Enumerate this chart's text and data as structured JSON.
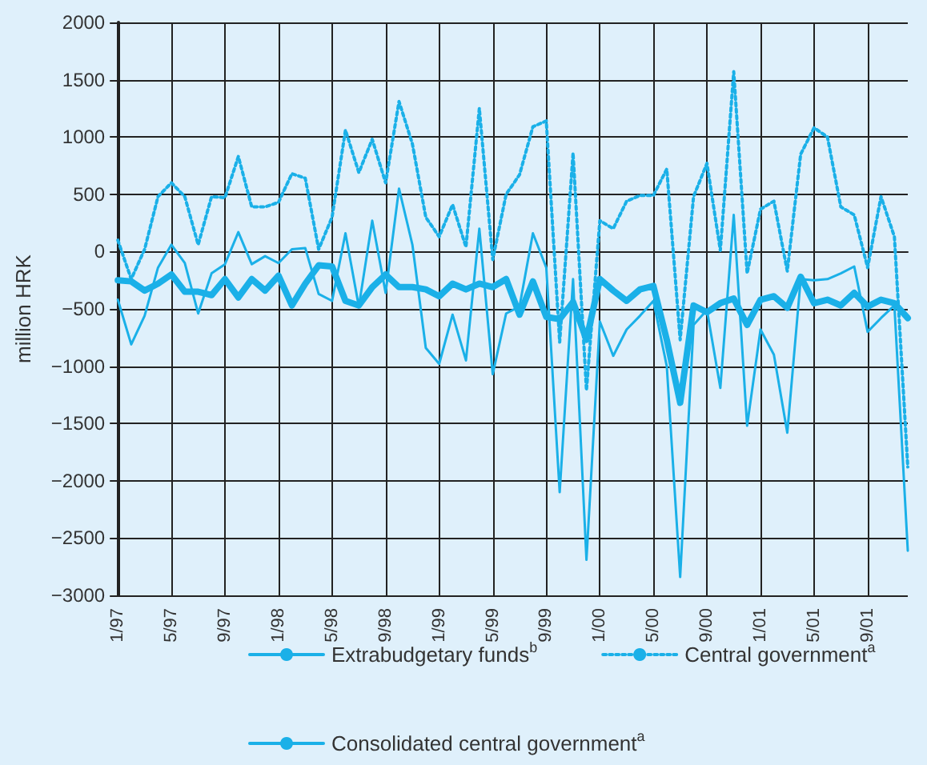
{
  "chart_data": {
    "type": "line",
    "ylabel": "million HRK",
    "categories": [
      "1/97",
      null,
      null,
      null,
      "5/97",
      null,
      null,
      null,
      "9/97",
      null,
      null,
      null,
      "1/98",
      null,
      null,
      null,
      "5/98",
      null,
      null,
      null,
      "9/98",
      null,
      null,
      null,
      "1/99",
      null,
      null,
      null,
      "5/99",
      null,
      null,
      null,
      "9/99",
      null,
      null,
      null,
      "1/00",
      null,
      null,
      null,
      "5/00",
      null,
      null,
      null,
      "9/00",
      null,
      null,
      null,
      "1/01",
      null,
      null,
      null,
      "5/01",
      null,
      null,
      null,
      "9/01",
      null,
      null,
      null
    ],
    "series": [
      {
        "name": "Extrabudgetary funds$^{b}$",
        "color": "#1ab0e8",
        "line_style": "solid",
        "values": [
          -250,
          -260,
          -340,
          -280,
          -200,
          -350,
          -350,
          -380,
          -240,
          -400,
          -240,
          -340,
          -210,
          -470,
          -280,
          -120,
          -130,
          -430,
          -470,
          -310,
          -200,
          -310,
          -310,
          -330,
          -390,
          -280,
          -330,
          -280,
          -310,
          -240,
          -550,
          -260,
          -570,
          -590,
          -440,
          -770,
          -240,
          -340,
          -430,
          -330,
          -300,
          -770,
          -1320,
          -470,
          -530,
          -450,
          -410,
          -640,
          -420,
          -390,
          -490,
          -220,
          -450,
          -420,
          -470,
          -360,
          -480,
          -420,
          -450,
          -580
        ]
      },
      {
        "name": "Central government$^{a}$",
        "color": "#1ab0e8",
        "line_style": "dotted",
        "values": [
          100,
          -240,
          20,
          480,
          600,
          480,
          60,
          480,
          470,
          830,
          390,
          390,
          430,
          680,
          640,
          20,
          300,
          1060,
          690,
          980,
          600,
          1310,
          940,
          300,
          130,
          410,
          40,
          1250,
          -70,
          500,
          670,
          1090,
          1140,
          -790,
          860,
          -1210,
          270,
          200,
          440,
          490,
          490,
          720,
          -770,
          480,
          770,
          10,
          1570,
          -190,
          370,
          440,
          -170,
          850,
          1080,
          1000,
          390,
          320,
          -140,
          480,
          130,
          -1880
        ]
      },
      {
        "name": "Consolidated central government$^{a}$",
        "color": "#1ab0e8",
        "line_style": "solid",
        "values": [
          -420,
          -810,
          -560,
          -140,
          60,
          -100,
          -540,
          -190,
          -110,
          170,
          -110,
          -40,
          -100,
          20,
          30,
          -370,
          -430,
          160,
          -480,
          270,
          -360,
          550,
          60,
          -840,
          -980,
          -550,
          -950,
          200,
          -1070,
          -540,
          -480,
          160,
          -140,
          -2100,
          -240,
          -2690,
          -610,
          -910,
          -680,
          -560,
          -430,
          -1000,
          -2840,
          -640,
          -510,
          -1190,
          320,
          -1520,
          -680,
          -900,
          -1580,
          -240,
          -250,
          -240,
          -190,
          -130,
          -700,
          -580,
          -470,
          -2610
        ]
      }
    ],
    "ylim": [
      -3000,
      2000
    ],
    "yticks": [
      -3000,
      -2500,
      -2000,
      -1500,
      -1000,
      -500,
      0,
      500,
      1000,
      1500,
      2000
    ],
    "grid": true,
    "legend": "bottom",
    "marker": "none"
  }
}
